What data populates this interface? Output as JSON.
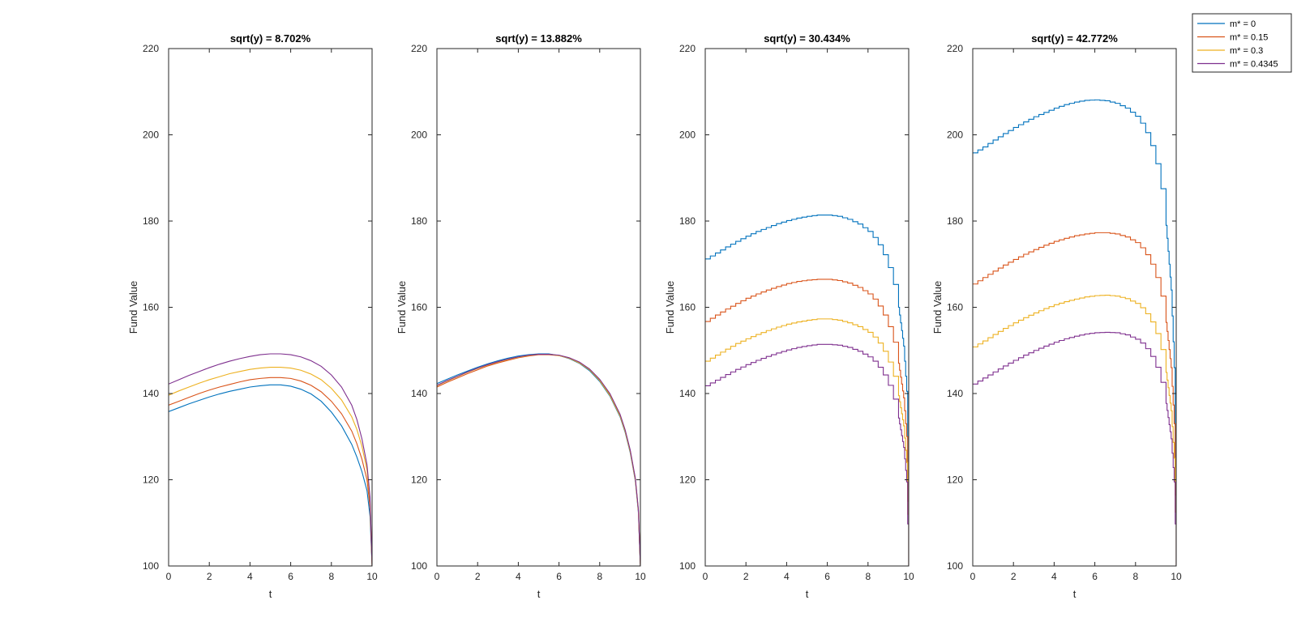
{
  "chart_data": {
    "type": "line",
    "ylabel": "Fund Value",
    "xlabel": "t",
    "xlim": [
      0,
      10
    ],
    "ylim": [
      100,
      220
    ],
    "xticks": [
      0,
      2,
      4,
      6,
      8,
      10
    ],
    "yticks": [
      100,
      120,
      140,
      160,
      180,
      200,
      220
    ],
    "grid": false,
    "legend_position": "top-right",
    "series_colors": [
      "#0072BD",
      "#D95319",
      "#EDB120",
      "#7E2F8E"
    ],
    "legend": [
      "m* = 0",
      "m* = 0.15",
      "m* = 0.3",
      "m* = 0.4345"
    ],
    "panels": [
      {
        "title": "sqrt(y) = 8.702%",
        "stepped": false,
        "series": [
          {
            "name": "m* = 0",
            "x": [
              0,
              0.5,
              1,
              1.5,
              2,
              2.5,
              3,
              3.5,
              4,
              4.5,
              5,
              5.5,
              6,
              6.5,
              7,
              7.5,
              8,
              8.5,
              9,
              9.25,
              9.5,
              9.75,
              9.9,
              10
            ],
            "y": [
              135.8,
              136.7,
              137.6,
              138.4,
              139.2,
              139.9,
              140.5,
              141.0,
              141.5,
              141.8,
              142.0,
              142.0,
              141.7,
              141.0,
              139.9,
              138.2,
              135.7,
              132.5,
              128.2,
              125.3,
              121.9,
              117.5,
              111.5,
              100.0
            ]
          },
          {
            "name": "m* = 0.15",
            "x": [
              0,
              0.5,
              1,
              1.5,
              2,
              2.5,
              3,
              3.5,
              4,
              4.5,
              5,
              5.5,
              6,
              6.5,
              7,
              7.5,
              8,
              8.5,
              9,
              9.25,
              9.5,
              9.75,
              9.9,
              10
            ],
            "y": [
              137.3,
              138.2,
              139.1,
              140.0,
              140.8,
              141.5,
              142.1,
              142.7,
              143.2,
              143.5,
              143.7,
              143.7,
              143.5,
              142.9,
              141.9,
              140.4,
              138.2,
              135.3,
              131.3,
              128.4,
              124.8,
              120.0,
              113.5,
              100.0
            ]
          },
          {
            "name": "m* = 0.3",
            "x": [
              0,
              0.5,
              1,
              1.5,
              2,
              2.5,
              3,
              3.5,
              4,
              4.5,
              5,
              5.5,
              6,
              6.5,
              7,
              7.5,
              8,
              8.5,
              9,
              9.25,
              9.5,
              9.75,
              9.9,
              10
            ],
            "y": [
              139.6,
              140.6,
              141.5,
              142.4,
              143.2,
              143.9,
              144.6,
              145.1,
              145.6,
              145.9,
              146.1,
              146.1,
              145.9,
              145.4,
              144.5,
              143.2,
              141.2,
              138.5,
              134.6,
              131.7,
              127.8,
              122.3,
              115.0,
              100.0
            ]
          },
          {
            "name": "m* = 0.4345",
            "x": [
              0,
              0.5,
              1,
              1.5,
              2,
              2.5,
              3,
              3.5,
              4,
              4.5,
              5,
              5.5,
              6,
              6.5,
              7,
              7.5,
              8,
              8.5,
              9,
              9.25,
              9.5,
              9.75,
              9.9,
              10
            ],
            "y": [
              142.2,
              143.2,
              144.2,
              145.1,
              146.0,
              146.8,
              147.5,
              148.1,
              148.6,
              149.0,
              149.2,
              149.2,
              149.0,
              148.5,
              147.6,
              146.3,
              144.3,
              141.5,
              137.3,
              134.0,
              129.5,
              123.5,
              116.0,
              100.0
            ]
          }
        ]
      },
      {
        "title": "sqrt(y) = 13.882%",
        "stepped": false,
        "series": [
          {
            "name": "m* = 0",
            "x": [
              0,
              0.5,
              1,
              1.5,
              2,
              2.5,
              3,
              3.5,
              4,
              4.5,
              5,
              5.5,
              6,
              6.5,
              7,
              7.5,
              8,
              8.5,
              9,
              9.25,
              9.5,
              9.75,
              9.9,
              10
            ],
            "y": [
              142.3,
              143.3,
              144.3,
              145.2,
              146.1,
              146.9,
              147.6,
              148.2,
              148.7,
              149.0,
              149.2,
              149.2,
              148.8,
              148.1,
              147.0,
              145.3,
              142.8,
              139.4,
              134.6,
              131.0,
              126.3,
              119.8,
              112.5,
              100.0
            ]
          },
          {
            "name": "m* = 0.15",
            "x": [
              0,
              0.5,
              1,
              1.5,
              2,
              2.5,
              3,
              3.5,
              4,
              4.5,
              5,
              5.5,
              6,
              6.5,
              7,
              7.5,
              8,
              8.5,
              9,
              9.25,
              9.5,
              9.75,
              9.9,
              10
            ],
            "y": [
              141.5,
              142.6,
              143.6,
              144.6,
              145.5,
              146.4,
              147.1,
              147.7,
              148.3,
              148.7,
              149.0,
              149.0,
              148.8,
              148.2,
              147.2,
              145.6,
              143.2,
              139.8,
              135.0,
              131.4,
              126.7,
              120.2,
              113.0,
              100.0
            ]
          },
          {
            "name": "m* = 0.3",
            "x": [
              0,
              0.5,
              1,
              1.5,
              2,
              2.5,
              3,
              3.5,
              4,
              4.5,
              5,
              5.5,
              6,
              6.5,
              7,
              7.5,
              8,
              8.5,
              9,
              9.25,
              9.5,
              9.75,
              9.9,
              10
            ],
            "y": [
              141.8,
              142.9,
              143.9,
              144.9,
              145.8,
              146.6,
              147.3,
              147.9,
              148.4,
              148.8,
              149.1,
              149.1,
              148.8,
              148.2,
              147.1,
              145.5,
              143.0,
              139.6,
              134.8,
              131.2,
              126.5,
              120.0,
              112.8,
              100.0
            ]
          },
          {
            "name": "m* = 0.4345",
            "x": [
              0,
              0.5,
              1,
              1.5,
              2,
              2.5,
              3,
              3.5,
              4,
              4.5,
              5,
              5.5,
              6,
              6.5,
              7,
              7.5,
              8,
              8.5,
              9,
              9.25,
              9.5,
              9.75,
              9.9,
              10
            ],
            "y": [
              141.9,
              143.0,
              144.0,
              145.0,
              145.9,
              146.7,
              147.4,
              148.0,
              148.5,
              148.9,
              149.1,
              149.1,
              148.9,
              148.3,
              147.3,
              145.7,
              143.3,
              140.0,
              135.2,
              131.6,
              126.9,
              120.4,
              113.2,
              100.0
            ]
          }
        ]
      },
      {
        "title": "sqrt(y) = 30.434%",
        "stepped": true,
        "series": [
          {
            "name": "m* = 0",
            "x": [
              0,
              0.5,
              1,
              1.5,
              2,
              2.5,
              3,
              3.5,
              4,
              4.5,
              5,
              5.5,
              6,
              6.5,
              7,
              7.5,
              8,
              8.25,
              8.5,
              8.75,
              9,
              9.25,
              9.5,
              9.75,
              9.9,
              10
            ],
            "y": [
              171.2,
              172.6,
              174.0,
              175.3,
              176.5,
              177.6,
              178.5,
              179.4,
              180.1,
              180.7,
              181.1,
              181.4,
              181.4,
              181.1,
              180.4,
              179.3,
              177.6,
              176.2,
              174.5,
              172.2,
              169.2,
              165.3,
              160.0,
              151.0,
              140.5,
              100.0
            ]
          },
          {
            "name": "m* = 0.15",
            "x": [
              0,
              0.5,
              1,
              1.5,
              2,
              2.5,
              3,
              3.5,
              4,
              4.5,
              5,
              5.5,
              6,
              6.5,
              7,
              7.5,
              8,
              8.25,
              8.5,
              8.75,
              9,
              9.25,
              9.5,
              9.75,
              9.9,
              10
            ],
            "y": [
              156.7,
              158.2,
              159.6,
              160.9,
              162.1,
              163.1,
              164.0,
              164.8,
              165.5,
              166.0,
              166.3,
              166.5,
              166.5,
              166.2,
              165.6,
              164.6,
              163.1,
              161.9,
              160.3,
              158.2,
              155.5,
              151.9,
              147.0,
              139.0,
              130.0,
              100.0
            ]
          },
          {
            "name": "m* = 0.3",
            "x": [
              0,
              0.5,
              1,
              1.5,
              2,
              2.5,
              3,
              3.5,
              4,
              4.5,
              5,
              5.5,
              6,
              6.5,
              7,
              7.5,
              8,
              8.25,
              8.5,
              8.75,
              9,
              9.25,
              9.5,
              9.75,
              9.9,
              10
            ],
            "y": [
              147.5,
              148.9,
              150.3,
              151.6,
              152.7,
              153.7,
              154.6,
              155.4,
              156.1,
              156.6,
              157.0,
              157.3,
              157.3,
              157.0,
              156.4,
              155.5,
              154.2,
              153.1,
              151.7,
              149.8,
              147.3,
              144.0,
              139.5,
              132.5,
              124.0,
              100.0
            ]
          },
          {
            "name": "m* = 0.4345",
            "x": [
              0,
              0.5,
              1,
              1.5,
              2,
              2.5,
              3,
              3.5,
              4,
              4.5,
              5,
              5.5,
              6,
              6.5,
              7,
              7.5,
              8,
              8.25,
              8.5,
              8.75,
              9,
              9.25,
              9.5,
              9.75,
              9.9,
              10
            ],
            "y": [
              141.8,
              143.1,
              144.4,
              145.6,
              146.7,
              147.7,
              148.6,
              149.4,
              150.1,
              150.7,
              151.1,
              151.4,
              151.4,
              151.2,
              150.7,
              149.8,
              148.5,
              147.5,
              146.1,
              144.3,
              141.9,
              138.7,
              134.3,
              127.5,
              119.5,
              100.0
            ]
          }
        ]
      },
      {
        "title": "sqrt(y) = 42.772%",
        "stepped": true,
        "series": [
          {
            "name": "m* = 0",
            "x": [
              0,
              0.5,
              1,
              1.5,
              2,
              2.5,
              3,
              3.5,
              4,
              4.5,
              5,
              5.5,
              6,
              6.5,
              7,
              7.5,
              8,
              8.25,
              8.5,
              8.75,
              9,
              9.25,
              9.5,
              9.75,
              9.9,
              10
            ],
            "y": [
              195.8,
              197.2,
              198.8,
              200.3,
              201.7,
              203.0,
              204.2,
              205.2,
              206.2,
              207.0,
              207.6,
              208.0,
              208.1,
              207.9,
              207.3,
              206.2,
              204.3,
              202.7,
              200.5,
              197.5,
              193.3,
              187.5,
              179.0,
              164.0,
              146.0,
              100.0
            ]
          },
          {
            "name": "m* = 0.15",
            "x": [
              0,
              0.5,
              1,
              1.5,
              2,
              2.5,
              3,
              3.5,
              4,
              4.5,
              5,
              5.5,
              6,
              6.5,
              7,
              7.5,
              8,
              8.25,
              8.5,
              8.75,
              9,
              9.25,
              9.5,
              9.75,
              9.9,
              10
            ],
            "y": [
              165.4,
              166.9,
              168.4,
              169.8,
              171.1,
              172.3,
              173.4,
              174.4,
              175.3,
              176.0,
              176.6,
              177.0,
              177.3,
              177.3,
              177.0,
              176.3,
              175.0,
              173.8,
              172.2,
              170.0,
              166.9,
              162.6,
              156.5,
              146.0,
              133.0,
              100.0
            ]
          },
          {
            "name": "m* = 0.3",
            "x": [
              0,
              0.5,
              1,
              1.5,
              2,
              2.5,
              3,
              3.5,
              4,
              4.5,
              5,
              5.5,
              6,
              6.5,
              7,
              7.5,
              8,
              8.25,
              8.5,
              8.75,
              9,
              9.25,
              9.5,
              9.75,
              9.9,
              10
            ],
            "y": [
              150.8,
              152.2,
              153.7,
              155.1,
              156.4,
              157.6,
              158.7,
              159.7,
              160.6,
              161.3,
              161.9,
              162.4,
              162.7,
              162.8,
              162.6,
              162.0,
              160.9,
              159.9,
              158.5,
              156.6,
              153.9,
              150.2,
              144.9,
              136.0,
              125.0,
              100.0
            ]
          },
          {
            "name": "m* = 0.4345",
            "x": [
              0,
              0.5,
              1,
              1.5,
              2,
              2.5,
              3,
              3.5,
              4,
              4.5,
              5,
              5.5,
              6,
              6.5,
              7,
              7.5,
              8,
              8.25,
              8.5,
              8.75,
              9,
              9.25,
              9.5,
              9.75,
              9.9,
              10
            ],
            "y": [
              142.2,
              143.6,
              145.0,
              146.4,
              147.7,
              148.9,
              150.0,
              151.0,
              151.9,
              152.7,
              153.3,
              153.8,
              154.1,
              154.2,
              154.1,
              153.6,
              152.6,
              151.7,
              150.4,
              148.6,
              146.1,
              142.6,
              137.7,
              129.5,
              119.5,
              100.0
            ]
          }
        ]
      }
    ]
  }
}
